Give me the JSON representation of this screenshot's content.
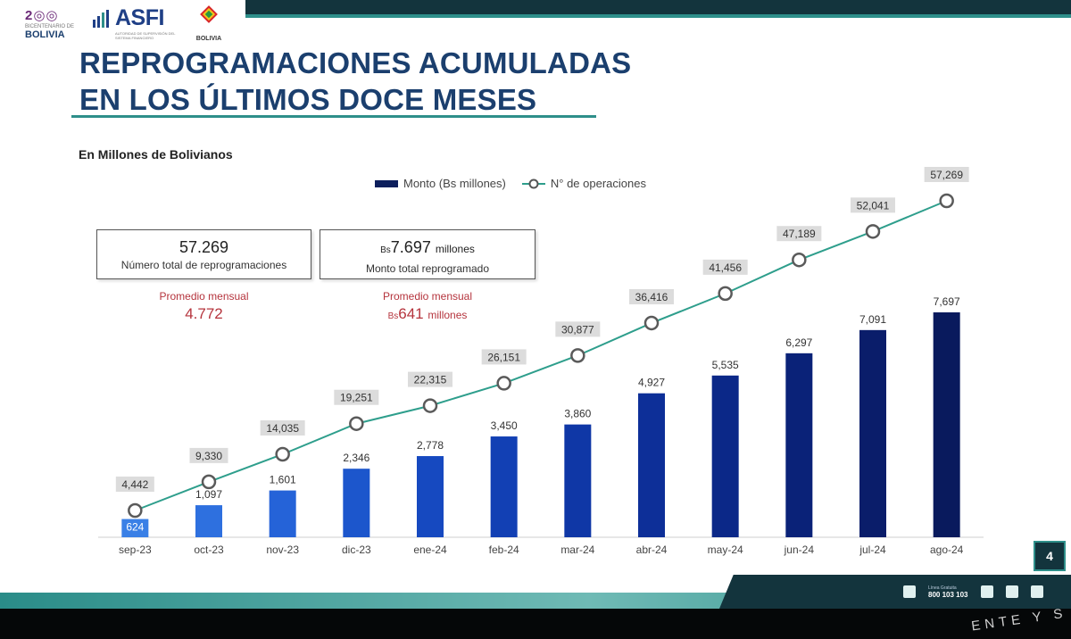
{
  "header": {
    "logos": {
      "bicentenario": {
        "small": "BICENTENARIO DE",
        "big": "BOLIVIA"
      },
      "asfi": {
        "name": "ASFI",
        "tagline": "AUTORIDAD DE SUPERVISIÓN DEL SISTEMA FINANCIERO"
      },
      "estado": {
        "text": "BOLIVIA"
      }
    },
    "title_line1": "REPROGRAMACIONES ACUMULADAS",
    "title_line2": "EN LOS ÚLTIMOS DOCE MESES"
  },
  "units_label": "En Millones de Bolivianos",
  "legend": {
    "bar": "Monto (Bs millones)",
    "line": "N° de operaciones"
  },
  "summary": {
    "total_ops": {
      "value": "57.269",
      "label": "Número total de reprogramaciones"
    },
    "total_amount": {
      "currency": "Bs",
      "value": "7.697",
      "unit": "millones",
      "label": "Monto total reprogramado"
    },
    "avg_ops": {
      "label": "Promedio mensual",
      "value": "4.772"
    },
    "avg_amount": {
      "label": "Promedio mensual",
      "currency": "Bs",
      "value": "641",
      "unit": "millones"
    }
  },
  "chart_data": {
    "type": "bar",
    "categories": [
      "sep-23",
      "oct-23",
      "nov-23",
      "dic-23",
      "ene-24",
      "feb-24",
      "mar-24",
      "abr-24",
      "may-24",
      "jun-24",
      "jul-24",
      "ago-24"
    ],
    "series": [
      {
        "name": "Monto (Bs millones)",
        "type": "bar",
        "values": [
          624,
          1097,
          1601,
          2346,
          2778,
          3450,
          3860,
          4927,
          5535,
          6297,
          7091,
          7697
        ],
        "labels": [
          "624",
          "1,097",
          "1,601",
          "2,346",
          "2,778",
          "3,450",
          "3,860",
          "4,927",
          "5,535",
          "6,297",
          "7,091",
          "7,697"
        ]
      },
      {
        "name": "N° de operaciones",
        "type": "line",
        "values": [
          4442,
          9330,
          14035,
          19251,
          22315,
          26151,
          30877,
          36416,
          41456,
          47189,
          52041,
          57269
        ],
        "labels": [
          "4,442",
          "9,330",
          "14,035",
          "19,251",
          "22,315",
          "26,151",
          "30,877",
          "36,416",
          "41,456",
          "47,189",
          "52,041",
          "57,269"
        ]
      }
    ],
    "bar_colors": [
      "#3a80e6",
      "#2e70df",
      "#2563d8",
      "#1c56cc",
      "#1649c0",
      "#1240b4",
      "#0f37a6",
      "#0d2f98",
      "#0b2888",
      "#0a2278",
      "#0a1d6a",
      "#091a5d"
    ],
    "line_color": "#2e9e8c",
    "grid": false,
    "legend_position": "top"
  },
  "page_number": "4",
  "footer": {
    "phone_label": "Línea Gratuita",
    "phone": "800 103 103",
    "slogan": "ENTE Y S"
  }
}
